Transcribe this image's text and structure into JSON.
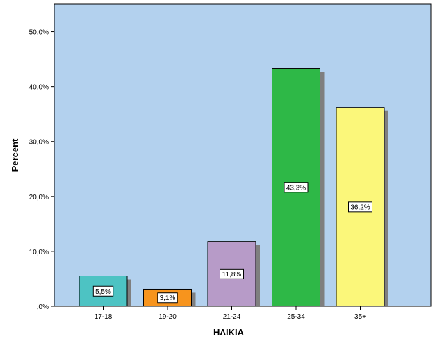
{
  "chart_data": {
    "type": "bar",
    "categories": [
      "17-18",
      "19-20",
      "21-24",
      "25-34",
      "35+"
    ],
    "values": [
      5.5,
      3.1,
      11.8,
      43.3,
      36.2
    ],
    "data_labels": [
      "5,5%",
      "3,1%",
      "11,8%",
      "43,3%",
      "36,2%"
    ],
    "colors": [
      "#4dc3c3",
      "#f7941d",
      "#b79bc8",
      "#2eb847",
      "#fbf77a"
    ],
    "background": "#b3d1ee",
    "xlabel": "ΗΛΙΚΙΑ",
    "ylabel": "Percent",
    "ylim": [
      0,
      55
    ],
    "yticks": [
      0,
      10,
      20,
      30,
      40,
      50
    ],
    "ytick_labels": [
      ",0%",
      "10,0%",
      "20,0%",
      "30,0%",
      "40,0%",
      "50,0%"
    ],
    "grid": false,
    "legend": "none"
  }
}
